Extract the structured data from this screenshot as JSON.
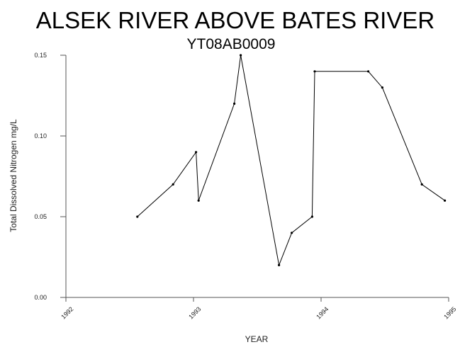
{
  "chart_data": {
    "type": "line",
    "title": "ALSEK RIVER ABOVE BATES RIVER",
    "subtitle": "YT08AB0009",
    "xlabel": "YEAR",
    "ylabel": "Total Dissolved Nitrogen mg/L",
    "xlim": [
      1992,
      1995
    ],
    "ylim": [
      0,
      0.15
    ],
    "x_ticks": [
      1992,
      1993,
      1994,
      1995
    ],
    "x_tick_labels": [
      "1992",
      "1993",
      "1994",
      "1995"
    ],
    "y_ticks": [
      0,
      0.05,
      0.1,
      0.15
    ],
    "y_tick_labels": [
      "0.00",
      "0.05",
      "0.10",
      "0.15"
    ],
    "grid": false,
    "series": [
      {
        "color": "#000000",
        "points": [
          {
            "x": 1992.56,
            "y": 0.05
          },
          {
            "x": 1992.84,
            "y": 0.07
          },
          {
            "x": 1993.02,
            "y": 0.09
          },
          {
            "x": 1993.04,
            "y": 0.06
          },
          {
            "x": 1993.32,
            "y": 0.12
          },
          {
            "x": 1993.37,
            "y": 0.15
          },
          {
            "x": 1993.67,
            "y": 0.02
          },
          {
            "x": 1993.77,
            "y": 0.04
          },
          {
            "x": 1993.93,
            "y": 0.05
          },
          {
            "x": 1993.95,
            "y": 0.14
          },
          {
            "x": 1994.37,
            "y": 0.14
          },
          {
            "x": 1994.48,
            "y": 0.13
          },
          {
            "x": 1994.79,
            "y": 0.07
          },
          {
            "x": 1994.97,
            "y": 0.06
          }
        ]
      }
    ]
  }
}
